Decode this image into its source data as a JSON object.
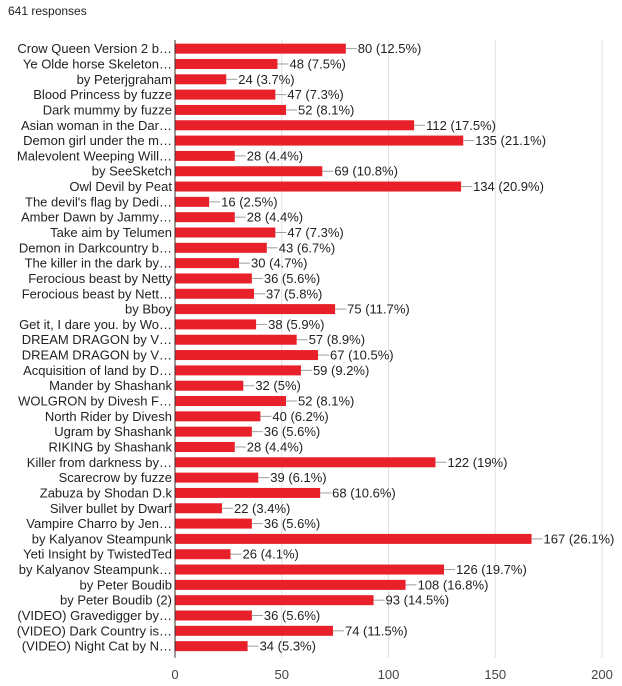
{
  "header": {
    "responses": "641 responses"
  },
  "colors": {
    "bar": "#e8202a",
    "grid": "#e0e0e0"
  },
  "chart_data": {
    "type": "bar",
    "orientation": "horizontal",
    "total_responses": 641,
    "xlim": [
      0,
      200
    ],
    "xticks": [
      0,
      50,
      100,
      150,
      200
    ],
    "grid": true,
    "categories": [
      "Crow Queen Version 2 b…",
      "Ye Olde horse Skeleton…",
      "by Peterjgraham",
      "Blood Princess by fuzze",
      "Dark mummy by fuzze",
      "Asian woman in the Dar…",
      "Demon girl under the m…",
      "Malevolent Weeping Will…",
      "by SeeSketch",
      "Owl Devil by Peat",
      "The devil's flag by Dedi…",
      "Amber Dawn by Jammy…",
      "Take aim by Telumen",
      "Demon in Darkcountry b…",
      "The killer in the dark by…",
      "Ferocious beast by Netty",
      "Ferocious beast by Nett…",
      "by Bboy",
      "Get it, I dare you. by Wo…",
      "DREAM DRAGON by V…",
      "DREAM DRAGON by V…",
      "Acquisition of land by D…",
      "Mander by Shashank",
      "WOLGRON by Divesh F…",
      "North Rider by Divesh",
      "Ugram by Shashank",
      "RIKING by Shashank",
      "Killer from darkness by…",
      "Scarecrow by fuzze",
      "Zabuza by Shodan D.k",
      "Silver bullet by Dwarf",
      "Vampire Charro by Jen…",
      "by Kalyanov Steampunk",
      "Yeti Insight by TwistedTed",
      "by Kalyanov Steampunk…",
      "by Peter Boudib",
      "by Peter Boudib (2)",
      "(VIDEO) Gravedigger by…",
      "(VIDEO) Dark Country is…",
      "(VIDEO) Night Cat by N…"
    ],
    "values": [
      80,
      48,
      24,
      47,
      52,
      112,
      135,
      28,
      69,
      134,
      16,
      28,
      47,
      43,
      30,
      36,
      37,
      75,
      38,
      57,
      67,
      59,
      32,
      52,
      40,
      36,
      28,
      122,
      39,
      68,
      22,
      36,
      167,
      26,
      126,
      108,
      93,
      36,
      74,
      34
    ],
    "value_labels": [
      "80 (12.5%)",
      "48 (7.5%)",
      "24 (3.7%)",
      "47 (7.3%)",
      "52 (8.1%)",
      "112 (17.5%)",
      "135 (21.1%)",
      "28 (4.4%)",
      "69 (10.8%)",
      "134 (20.9%)",
      "16 (2.5%)",
      "28 (4.4%)",
      "47 (7.3%)",
      "43 (6.7%)",
      "30 (4.7%)",
      "36 (5.6%)",
      "37 (5.8%)",
      "75 (11.7%)",
      "38 (5.9%)",
      "57 (8.9%)",
      "67 (10.5%)",
      "59 (9.2%)",
      "32 (5%)",
      "52 (8.1%)",
      "40 (6.2%)",
      "36 (5.6%)",
      "28 (4.4%)",
      "122 (19%)",
      "39 (6.1%)",
      "68 (10.6%)",
      "22 (3.4%)",
      "36 (5.6%)",
      "167 (26.1%)",
      "26 (4.1%)",
      "126 (19.7%)",
      "108 (16.8%)",
      "93 (14.5%)",
      "36 (5.6%)",
      "74 (11.5%)",
      "34 (5.3%)"
    ]
  }
}
